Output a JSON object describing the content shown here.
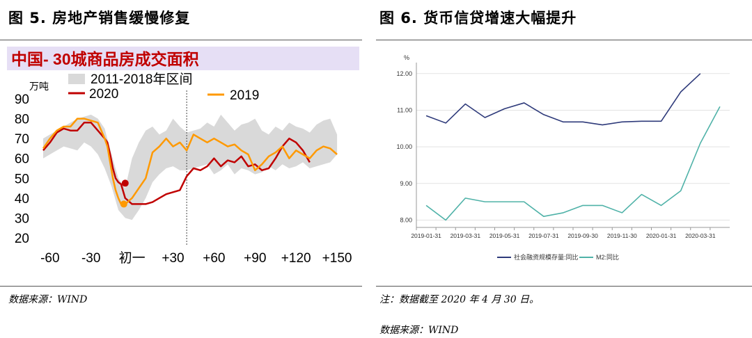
{
  "left": {
    "figure_title": "图 5. 房地产销售缓慢修复",
    "source": "数据来源：WIND"
  },
  "right": {
    "figure_title": "图 6.  货币信贷增速大幅提升",
    "note": "注：数据截至 2020 年 4 月 30 日。",
    "source": "数据来源：WIND"
  },
  "chart_data": [
    {
      "type": "line",
      "title": "中国- 30城商品房成交面积",
      "ylabel": "万吨",
      "ylim": [
        20,
        90
      ],
      "yticks": [
        "20",
        "30",
        "40",
        "50",
        "60",
        "70",
        "80",
        "90"
      ],
      "xlim": [
        -65,
        152
      ],
      "xticks": [
        {
          "x": -60,
          "label": "-60"
        },
        {
          "x": -30,
          "label": "-30"
        },
        {
          "x": 0,
          "label": "初一"
        },
        {
          "x": 30,
          "label": "+30"
        },
        {
          "x": 60,
          "label": "+60"
        },
        {
          "x": 90,
          "label": "+90"
        },
        {
          "x": 120,
          "label": "+120"
        },
        {
          "x": 150,
          "label": "+150"
        }
      ],
      "vline_x": 40,
      "legend": "top",
      "band": {
        "name": "2011-2018年区间",
        "color": "#d9d9d9",
        "x": [
          -65,
          -60,
          -55,
          -50,
          -45,
          -40,
          -35,
          -30,
          -25,
          -20,
          -15,
          -10,
          -5,
          0,
          5,
          10,
          15,
          20,
          25,
          30,
          35,
          40,
          45,
          50,
          55,
          60,
          65,
          70,
          75,
          80,
          85,
          90,
          95,
          100,
          105,
          110,
          115,
          120,
          125,
          130,
          135,
          140,
          145,
          150
        ],
        "upper": [
          70,
          72,
          74,
          76,
          78,
          80,
          81,
          82,
          80,
          75,
          62,
          50,
          45,
          60,
          68,
          74,
          76,
          72,
          74,
          80,
          76,
          73,
          74,
          75,
          78,
          76,
          82,
          78,
          74,
          77,
          78,
          80,
          74,
          72,
          76,
          74,
          78,
          76,
          75,
          73,
          77,
          79,
          80,
          72
        ],
        "lower": [
          60,
          62,
          64,
          66,
          65,
          64,
          68,
          66,
          62,
          55,
          46,
          34,
          30,
          29,
          34,
          40,
          48,
          52,
          55,
          56,
          54,
          54,
          55,
          56,
          57,
          52,
          54,
          57,
          52,
          55,
          54,
          52,
          53,
          56,
          54,
          57,
          55,
          56,
          58,
          55,
          56,
          57,
          58,
          62
        ]
      },
      "series": [
        {
          "name": "2020",
          "color": "#c00000",
          "x": [
            -65,
            -60,
            -55,
            -50,
            -45,
            -40,
            -35,
            -30,
            -25,
            -20,
            -18,
            -16,
            -14,
            -12,
            -10,
            -8,
            -5,
            0,
            5,
            10,
            15,
            20,
            25,
            30,
            35,
            40,
            45,
            50,
            55,
            60,
            65,
            70,
            75,
            80,
            85,
            90,
            95,
            100,
            105,
            110,
            115,
            120,
            125,
            130
          ],
          "y": [
            64,
            68,
            73,
            75,
            74,
            74,
            78,
            78,
            74,
            70,
            68,
            62,
            55,
            50,
            48,
            47,
            40,
            37,
            37,
            37,
            38,
            40,
            42,
            43,
            44,
            51,
            55,
            54,
            56,
            60,
            56,
            59,
            58,
            61,
            56,
            57,
            54,
            55,
            60,
            66,
            70,
            68,
            64,
            58
          ],
          "marker": {
            "x": -5,
            "y": 47.5
          }
        },
        {
          "name": "2019",
          "color": "#ff9900",
          "x": [
            -65,
            -60,
            -55,
            -50,
            -45,
            -40,
            -35,
            -30,
            -25,
            -20,
            -18,
            -16,
            -14,
            -12,
            -10,
            -8,
            -5,
            0,
            5,
            10,
            15,
            20,
            25,
            30,
            35,
            40,
            45,
            50,
            55,
            60,
            65,
            70,
            75,
            80,
            85,
            90,
            95,
            100,
            105,
            110,
            115,
            120,
            125,
            130,
            135,
            140,
            145,
            150
          ],
          "y": [
            65,
            70,
            74,
            76,
            76,
            80,
            80,
            79,
            78,
            70,
            66,
            58,
            50,
            44,
            40,
            37,
            37,
            40,
            45,
            50,
            63,
            66,
            70,
            66,
            68,
            64,
            72,
            70,
            68,
            70,
            68,
            66,
            67,
            64,
            62,
            54,
            57,
            61,
            63,
            66,
            60,
            64,
            62,
            60,
            64,
            66,
            65,
            62
          ],
          "marker": {
            "x": -6,
            "y": 37
          }
        }
      ]
    },
    {
      "type": "line",
      "ylabel": "%",
      "ylim": [
        7.8,
        12.3
      ],
      "yticks": [
        "8.00",
        "9.00",
        "10.00",
        "11.00",
        "12.00"
      ],
      "categories": [
        "2019-01-31",
        "2019-02-28",
        "2019-03-31",
        "2019-04-30",
        "2019-05-31",
        "2019-06-30",
        "2019-07-31",
        "2019-08-31",
        "2019-09-30",
        "2019-10-31",
        "2019-11-30",
        "2019-12-31",
        "2020-01-31",
        "2020-02-29",
        "2020-03-31",
        "2020-04-30"
      ],
      "xtick_labels": [
        "2019-01-31",
        "2019-03-31",
        "2019-05-31",
        "2019-07-31",
        "2019-09-30",
        "2019-11-30",
        "2020-01-31",
        "2020-03-31"
      ],
      "legend": "bottom",
      "series": [
        {
          "name": "社会融资规模存量:同比",
          "color": "#2e3a7a",
          "values": [
            10.85,
            10.65,
            11.17,
            10.8,
            11.04,
            11.2,
            10.88,
            10.68,
            10.68,
            10.6,
            10.68,
            10.7,
            10.7,
            11.5,
            12.0,
            null
          ]
        },
        {
          "name": "M2:同比",
          "color": "#4fb2a8",
          "values": [
            8.4,
            8.0,
            8.6,
            8.5,
            8.5,
            8.5,
            8.1,
            8.2,
            8.4,
            8.4,
            8.2,
            8.7,
            8.4,
            8.8,
            10.1,
            11.1
          ]
        }
      ]
    }
  ]
}
